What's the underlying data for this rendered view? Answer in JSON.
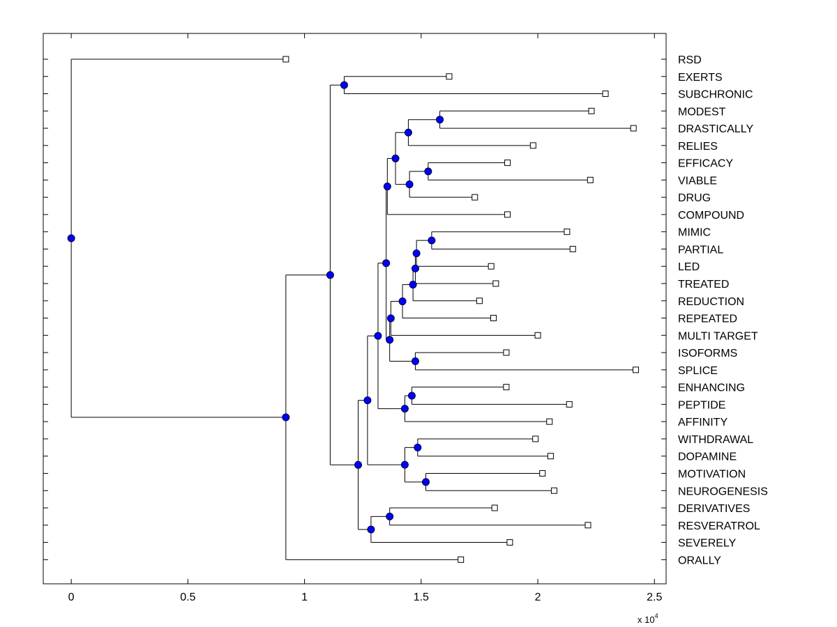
{
  "chart_data": {
    "type": "dendrogram",
    "orientation": "horizontal",
    "xlim": [
      -1200,
      25500
    ],
    "x_ticks": [
      0,
      5000,
      10000,
      15000,
      20000,
      25000
    ],
    "x_tick_labels": [
      "0",
      "0.5",
      "1",
      "1.5",
      "2",
      "2.5"
    ],
    "x_multiplier": "x 10",
    "x_multiplier_exp": "4",
    "leaf_end_values": {
      "RSD": 9200,
      "EXERTS": 16200,
      "SUBCHRONIC": 22900,
      "MODEST": 22300,
      "DRASTICALLY": 24100,
      "RELIES": 19800,
      "EFFICACY": 18700,
      "VIABLE": 22250,
      "DRUG": 17300,
      "COMPOUND": 18700,
      "MIMIC": 21250,
      "PARTIAL": 21500,
      "LED": 18000,
      "TREATED": 18200,
      "REDUCTION": 17500,
      "REPEATED": 18100,
      "MULTI TARGET": 20000,
      "ISOFORMS": 18650,
      "SPLICE": 24200,
      "ENHANCING": 18650,
      "PEPTIDE": 21350,
      "AFFINITY": 20500,
      "WITHDRAWAL": 19900,
      "DOPAMINE": 20550,
      "MOTIVATION": 20200,
      "NEUROGENESIS": 20700,
      "DERIVATIVES": 18150,
      "RESVERATROL": 22150,
      "SEVERELY": 18800,
      "ORALLY": 16700
    },
    "tree": {
      "h": 0,
      "c": [
        {
          "leaf": "RSD"
        },
        {
          "h": 9200,
          "c": [
            {
              "h": 11100,
              "c": [
                {
                  "h": 11700,
                  "c": [
                    {
                      "leaf": "EXERTS"
                    },
                    {
                      "leaf": "SUBCHRONIC"
                    }
                  ]
                },
                {
                  "h": 12300,
                  "c": [
                    {
                      "h": 12700,
                      "c": [
                        {
                          "h": 13150,
                          "c": [
                            {
                              "h": 13500,
                              "c": [
                                {
                                  "h": 13550,
                                  "c": [
                                    {
                                      "h": 13900,
                                      "c": [
                                        {
                                          "h": 14450,
                                          "c": [
                                            {
                                              "h": 15800,
                                              "c": [
                                                {
                                                  "leaf": "MODEST"
                                                },
                                                {
                                                  "leaf": "DRASTICALLY"
                                                }
                                              ]
                                            },
                                            {
                                              "leaf": "RELIES"
                                            }
                                          ]
                                        },
                                        {
                                          "h": 14500,
                                          "c": [
                                            {
                                              "h": 15300,
                                              "c": [
                                                {
                                                  "leaf": "EFFICACY"
                                                },
                                                {
                                                  "leaf": "VIABLE"
                                                }
                                              ]
                                            },
                                            {
                                              "leaf": "DRUG"
                                            }
                                          ]
                                        }
                                      ]
                                    },
                                    {
                                      "leaf": "COMPOUND"
                                    }
                                  ]
                                },
                                {
                                  "h": 13650,
                                  "c": [
                                    {
                                      "h": 13700,
                                      "c": [
                                        {
                                          "h": 14200,
                                          "c": [
                                            {
                                              "h": 14650,
                                              "c": [
                                                {
                                                  "h": 14750,
                                                  "c": [
                                                    {
                                                      "h": 14800,
                                                      "c": [
                                                        {
                                                          "h": 15450,
                                                          "c": [
                                                            {
                                                              "leaf": "MIMIC"
                                                            },
                                                            {
                                                              "leaf": "PARTIAL"
                                                            }
                                                          ]
                                                        },
                                                        {
                                                          "leaf": "LED"
                                                        }
                                                      ]
                                                    },
                                                    {
                                                      "leaf": "TREATED"
                                                    }
                                                  ]
                                                },
                                                {
                                                  "leaf": "REDUCTION"
                                                }
                                              ]
                                            },
                                            {
                                              "leaf": "REPEATED"
                                            }
                                          ]
                                        },
                                        {
                                          "leaf": "MULTI TARGET"
                                        }
                                      ]
                                    },
                                    {
                                      "h": 14750,
                                      "c": [
                                        {
                                          "leaf": "ISOFORMS"
                                        },
                                        {
                                          "leaf": "SPLICE"
                                        }
                                      ]
                                    }
                                  ]
                                }
                              ]
                            },
                            {
                              "h": 14300,
                              "c": [
                                {
                                  "h": 14600,
                                  "c": [
                                    {
                                      "leaf": "ENHANCING"
                                    },
                                    {
                                      "leaf": "PEPTIDE"
                                    }
                                  ]
                                },
                                {
                                  "leaf": "AFFINITY"
                                }
                              ]
                            }
                          ]
                        },
                        {
                          "h": 14300,
                          "c": [
                            {
                              "h": 14850,
                              "c": [
                                {
                                  "leaf": "WITHDRAWAL"
                                },
                                {
                                  "leaf": "DOPAMINE"
                                }
                              ]
                            },
                            {
                              "h": 15200,
                              "c": [
                                {
                                  "leaf": "MOTIVATION"
                                },
                                {
                                  "leaf": "NEUROGENESIS"
                                }
                              ]
                            }
                          ]
                        }
                      ]
                    },
                    {
                      "h": 12850,
                      "c": [
                        {
                          "h": 13650,
                          "c": [
                            {
                              "leaf": "DERIVATIVES"
                            },
                            {
                              "leaf": "RESVERATROL"
                            }
                          ]
                        },
                        {
                          "leaf": "SEVERELY"
                        }
                      ]
                    }
                  ]
                }
              ]
            },
            {
              "leaf": "ORALLY"
            }
          ]
        }
      ]
    }
  }
}
